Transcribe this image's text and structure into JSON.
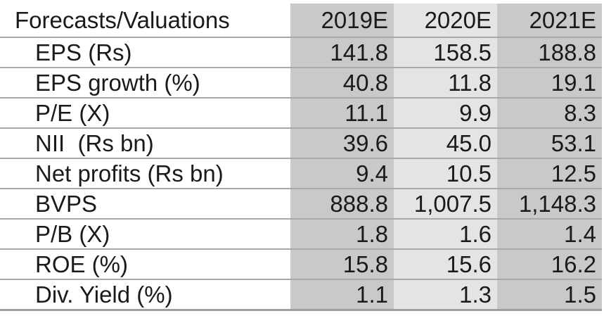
{
  "theme": {
    "col-dark": "#c9c9c9",
    "col-light": "#e4e4e4",
    "rule-color": "#a9a9a9",
    "bottom-rule-color": "#9e9e9e",
    "text-color": "#1a1a1a"
  },
  "table": {
    "header": {
      "label": "Forecasts/Valuations",
      "columns": [
        "2019E",
        "2020E",
        "2021E"
      ]
    },
    "rows": [
      {
        "label": "EPS (Rs)",
        "values": [
          "141.8",
          "158.5",
          "188.8"
        ]
      },
      {
        "label": "EPS growth (%)",
        "values": [
          "40.8",
          "11.8",
          "19.1"
        ]
      },
      {
        "label": "P/E (X)",
        "values": [
          "11.1",
          "9.9",
          "8.3"
        ]
      },
      {
        "label": "NII  (Rs bn)",
        "values": [
          "39.6",
          "45.0",
          "53.1"
        ]
      },
      {
        "label": "Net profits (Rs bn)",
        "values": [
          "9.4",
          "10.5",
          "12.5"
        ]
      },
      {
        "label": "BVPS",
        "values": [
          "888.8",
          "1,007.5",
          "1,148.3"
        ]
      },
      {
        "label": "P/B (X)",
        "values": [
          "1.8",
          "1.6",
          "1.4"
        ]
      },
      {
        "label": "ROE (%)",
        "values": [
          "15.8",
          "15.6",
          "16.2"
        ]
      },
      {
        "label": "Div. Yield (%)",
        "values": [
          "1.1",
          "1.3",
          "1.5"
        ]
      }
    ]
  }
}
